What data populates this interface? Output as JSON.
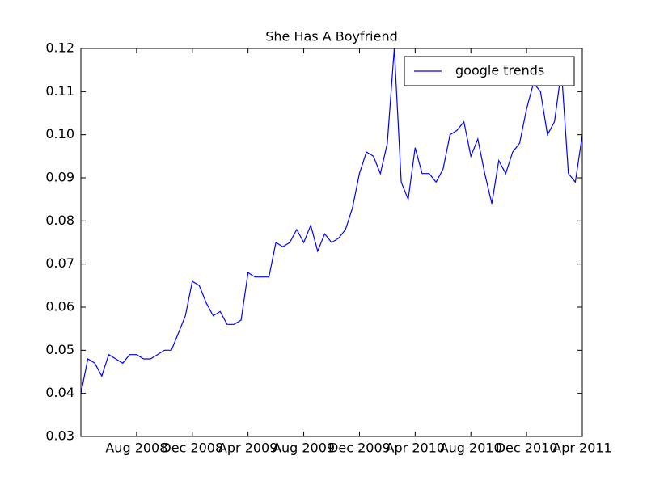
{
  "chart_data": {
    "type": "line",
    "title": "She Has A Boyfriend",
    "categories": [
      null,
      null,
      null,
      null,
      null,
      null,
      null,
      null,
      "Aug 2008",
      null,
      null,
      null,
      null,
      null,
      null,
      null,
      "Dec 2008",
      null,
      null,
      null,
      null,
      null,
      null,
      null,
      "Apr 2009",
      null,
      null,
      null,
      null,
      null,
      null,
      null,
      "Aug 2009",
      null,
      null,
      null,
      null,
      null,
      null,
      null,
      "Dec 2009",
      null,
      null,
      null,
      null,
      null,
      null,
      null,
      "Apr 2010",
      null,
      null,
      null,
      null,
      null,
      null,
      null,
      "Aug 2010",
      null,
      null,
      null,
      null,
      null,
      null,
      null,
      "Dec 2010",
      null,
      null,
      null,
      null,
      null,
      null,
      null,
      "Apr 2011"
    ],
    "series": [
      {
        "name": "google trends",
        "color": "#0000ff",
        "values": [
          0.04,
          0.048,
          0.047,
          0.044,
          0.049,
          0.048,
          0.047,
          0.049,
          0.049,
          0.048,
          0.048,
          0.049,
          0.05,
          0.05,
          0.054,
          0.058,
          0.066,
          0.065,
          0.061,
          0.058,
          0.059,
          0.056,
          0.056,
          0.057,
          0.068,
          0.067,
          0.067,
          0.067,
          0.075,
          0.074,
          0.075,
          0.078,
          0.075,
          0.079,
          0.073,
          0.077,
          0.075,
          0.076,
          0.078,
          0.083,
          0.091,
          0.096,
          0.095,
          0.091,
          0.098,
          0.12,
          0.089,
          0.085,
          0.097,
          0.091,
          0.091,
          0.089,
          0.092,
          0.1,
          0.101,
          0.103,
          0.095,
          0.099,
          0.091,
          0.084,
          0.094,
          0.091,
          0.096,
          0.098,
          0.106,
          0.112,
          0.11,
          0.1,
          0.103,
          0.115,
          0.091,
          0.089,
          0.1
        ]
      }
    ],
    "ylim": [
      0.03,
      0.12
    ],
    "yticks": [
      0.03,
      0.04,
      0.05,
      0.06,
      0.07,
      0.08,
      0.09,
      {
        "value": 0.1,
        "label": "0.10"
      },
      0.11,
      0.12
    ],
    "legend": "upper right",
    "grid": false
  }
}
